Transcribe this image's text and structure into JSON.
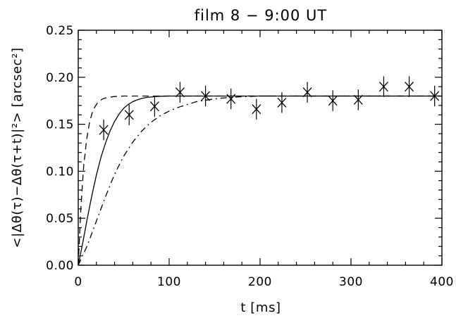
{
  "chart_data": {
    "type": "scatter",
    "title": "film 8 − 9:00 UT",
    "xlabel": "t [ms]",
    "ylabel": "<|Δθ(τ)−Δθ(τ+t)|²> [arcsec²]",
    "xlim": [
      0,
      400
    ],
    "ylim": [
      0,
      0.25
    ],
    "x_ticks": [
      "0",
      "100",
      "200",
      "300",
      "400"
    ],
    "y_ticks": [
      "0.00",
      "0.05",
      "0.10",
      "0.15",
      "0.20",
      "0.25"
    ],
    "grid": false,
    "series": [
      {
        "marker": "x",
        "style": "points-with-error-bars",
        "x": [
          28,
          56,
          84,
          112,
          140,
          168,
          196,
          224,
          252,
          280,
          308,
          336,
          364,
          392
        ],
        "y": [
          0.144,
          0.16,
          0.169,
          0.184,
          0.18,
          0.177,
          0.166,
          0.173,
          0.184,
          0.175,
          0.176,
          0.19,
          0.19,
          0.18
        ],
        "err": [
          0.011,
          0.011,
          0.011,
          0.011,
          0.011,
          0.011,
          0.011,
          0.011,
          0.011,
          0.011,
          0.011,
          0.011,
          0.011,
          0.011
        ]
      },
      {
        "style": "solid",
        "asymptote": 0.18,
        "x": [
          0,
          5,
          10,
          15,
          20,
          25,
          30,
          35,
          40,
          45,
          50,
          55,
          60,
          65,
          70,
          75,
          80,
          85,
          90,
          95,
          100,
          110,
          120,
          140,
          160,
          200,
          300,
          400
        ],
        "y": [
          0.0,
          0.024,
          0.05,
          0.074,
          0.096,
          0.115,
          0.13,
          0.143,
          0.153,
          0.161,
          0.167,
          0.171,
          0.174,
          0.176,
          0.1775,
          0.1785,
          0.179,
          0.1795,
          0.1798,
          0.1799,
          0.18,
          0.18,
          0.18,
          0.18,
          0.18,
          0.18,
          0.18,
          0.18
        ]
      },
      {
        "style": "dashed",
        "asymptote": 0.18,
        "x": [
          0,
          3,
          6,
          9,
          12,
          15,
          18,
          21,
          24,
          27,
          30,
          35,
          40,
          50,
          60,
          80,
          100,
          200,
          300,
          400
        ],
        "y": [
          0.0,
          0.063,
          0.105,
          0.132,
          0.15,
          0.161,
          0.168,
          0.1725,
          0.175,
          0.177,
          0.178,
          0.179,
          0.1795,
          0.18,
          0.18,
          0.18,
          0.18,
          0.18,
          0.18,
          0.18
        ]
      },
      {
        "style": "dash-dot",
        "asymptote": 0.18,
        "x": [
          0,
          10,
          20,
          30,
          40,
          50,
          60,
          70,
          80,
          90,
          100,
          110,
          120,
          130,
          140,
          150,
          160,
          180,
          200,
          300,
          400
        ],
        "y": [
          0.0,
          0.021,
          0.047,
          0.073,
          0.097,
          0.116,
          0.131,
          0.143,
          0.152,
          0.159,
          0.164,
          0.168,
          0.171,
          0.174,
          0.1755,
          0.177,
          0.178,
          0.1793,
          0.18,
          0.18,
          0.18
        ]
      }
    ]
  }
}
